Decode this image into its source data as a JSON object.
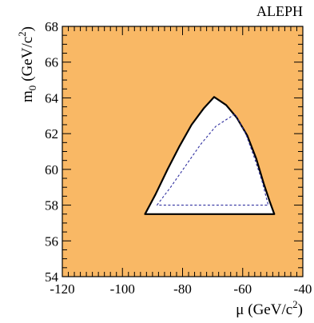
{
  "chart_data": {
    "type": "area",
    "experiment_label": "ALEPH",
    "xlabel": {
      "symbol": "μ",
      "unit": "(GeV/c",
      "power": "2",
      "close": ")"
    },
    "ylabel": {
      "symbol": "m",
      "subscript": "0",
      "unit": "(GeV/c",
      "power": "2",
      "close": ")"
    },
    "xlim": [
      -120,
      -40
    ],
    "ylim": [
      54,
      68
    ],
    "x_major_ticks": [
      -120,
      -100,
      -80,
      -60,
      -40
    ],
    "x_tick_labels": [
      "-120",
      "-100",
      "-80",
      "-60",
      "-40"
    ],
    "y_major_ticks": [
      54,
      56,
      58,
      60,
      62,
      64,
      66,
      68
    ],
    "y_tick_labels": [
      "54",
      "56",
      "58",
      "60",
      "62",
      "64",
      "66",
      "68"
    ],
    "x_minor_step": 2,
    "y_minor_step": 0.5,
    "grid": false,
    "colors": {
      "excluded_fill": "#f9b865",
      "allowed_fill": "#ffffff",
      "solid_contour": "#000000",
      "dashed_contour": "#3030a0"
    },
    "series": [
      {
        "style": "solid",
        "points": [
          [
            -92.5,
            57.5
          ],
          [
            -89,
            58.6
          ],
          [
            -85,
            60.0
          ],
          [
            -81,
            61.3
          ],
          [
            -77,
            62.5
          ],
          [
            -73,
            63.4
          ],
          [
            -69.5,
            64.05
          ],
          [
            -65.5,
            63.6
          ],
          [
            -62,
            62.9
          ],
          [
            -58.5,
            61.9
          ],
          [
            -55.5,
            60.6
          ],
          [
            -53,
            59.2
          ],
          [
            -51,
            58.2
          ],
          [
            -49.5,
            57.5
          ],
          [
            -92.5,
            57.5
          ]
        ]
      },
      {
        "style": "dashed",
        "points": [
          [
            -88.5,
            58.0
          ],
          [
            -84,
            59.0
          ],
          [
            -79,
            60.2
          ],
          [
            -74,
            61.4
          ],
          [
            -69,
            62.4
          ],
          [
            -62.5,
            63.1
          ],
          [
            -59,
            62.0
          ],
          [
            -56,
            60.6
          ],
          [
            -53.5,
            59.3
          ],
          [
            -51.5,
            58.0
          ],
          [
            -88.5,
            58.0
          ]
        ]
      }
    ]
  }
}
